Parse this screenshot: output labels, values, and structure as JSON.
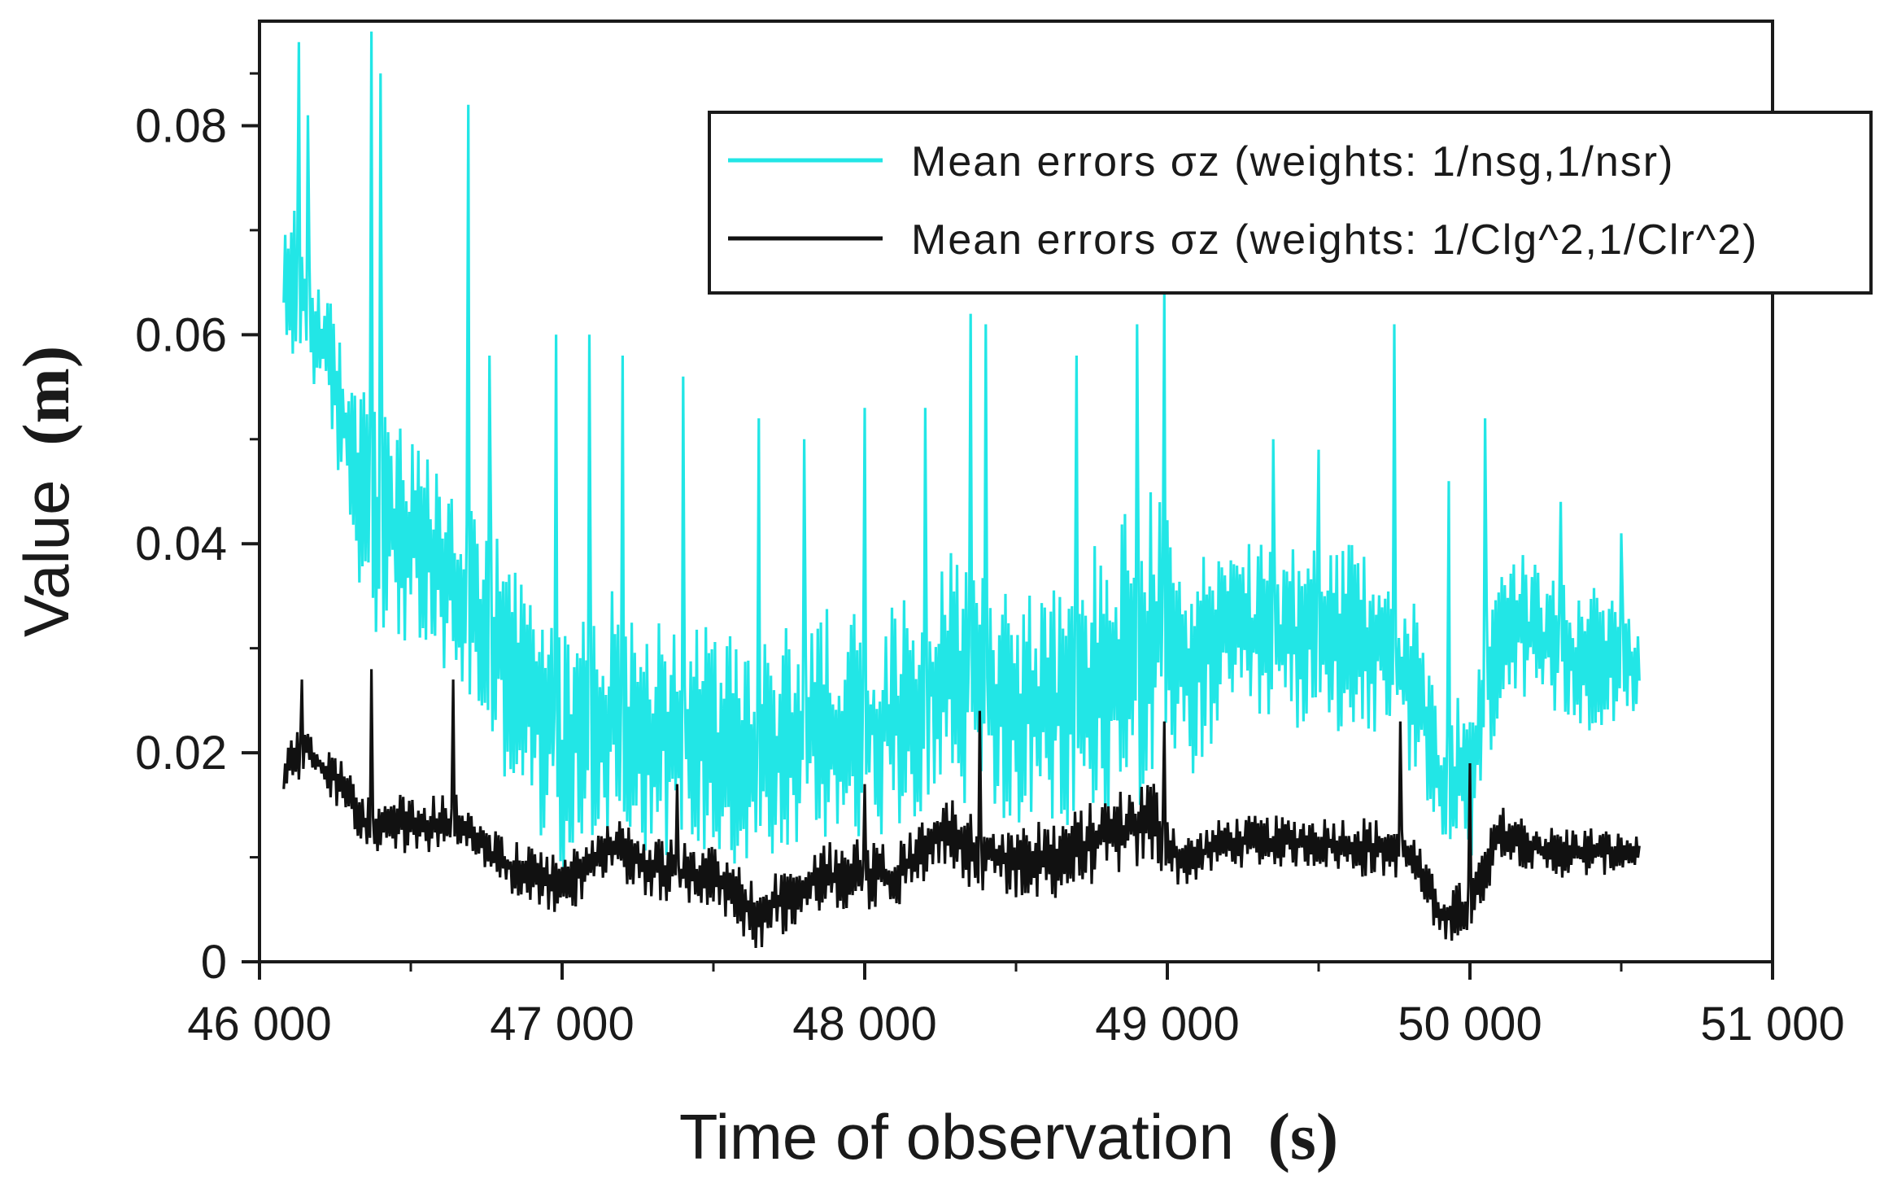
{
  "colors": {
    "series1": "#22e6e6",
    "series2": "#111111",
    "axis": "#1a1a1a",
    "background": "#ffffff"
  },
  "chart_data": {
    "type": "line",
    "title": "",
    "xlabel": "Time of observation",
    "xlabel_unit": "(s)",
    "ylabel": "Value",
    "ylabel_unit": "(m)",
    "xlim": [
      46000,
      51000
    ],
    "ylim": [
      0,
      0.09
    ],
    "x_ticks": [
      46000,
      47000,
      48000,
      49000,
      50000,
      51000
    ],
    "x_tick_labels": [
      "46 000",
      "47 000",
      "48 000",
      "49 000",
      "50 000",
      "51 000"
    ],
    "y_ticks": [
      0,
      0.02,
      0.04,
      0.06,
      0.08
    ],
    "y_tick_labels": [
      "0",
      "0.02",
      "0.04",
      "0.06",
      "0.08"
    ],
    "legend_position": "top-right",
    "series": [
      {
        "name": "Mean errors σz (weights: 1/nsg,1/nsr)",
        "x_start": 46080,
        "x_end": 50560,
        "envelope_x": [
          46080,
          46150,
          46250,
          46350,
          46500,
          46650,
          46800,
          47000,
          47150,
          47300,
          47500,
          47650,
          47800,
          47950,
          48100,
          48250,
          48350,
          48500,
          48650,
          48800,
          48950,
          49050,
          49200,
          49350,
          49500,
          49650,
          49800,
          49900,
          50000,
          50100,
          50250,
          50400,
          50560
        ],
        "envelope_low": [
          0.055,
          0.058,
          0.048,
          0.032,
          0.03,
          0.026,
          0.018,
          0.008,
          0.012,
          0.01,
          0.01,
          0.008,
          0.01,
          0.012,
          0.012,
          0.016,
          0.014,
          0.012,
          0.012,
          0.012,
          0.016,
          0.016,
          0.022,
          0.022,
          0.022,
          0.022,
          0.018,
          0.01,
          0.008,
          0.024,
          0.022,
          0.022,
          0.024
        ],
        "envelope_high": [
          0.074,
          0.07,
          0.062,
          0.055,
          0.05,
          0.046,
          0.04,
          0.032,
          0.036,
          0.034,
          0.032,
          0.03,
          0.034,
          0.034,
          0.034,
          0.04,
          0.04,
          0.036,
          0.036,
          0.042,
          0.046,
          0.04,
          0.04,
          0.04,
          0.04,
          0.04,
          0.036,
          0.026,
          0.026,
          0.042,
          0.038,
          0.036,
          0.034
        ],
        "spikes": [
          [
            46130,
            0.088
          ],
          [
            46160,
            0.081
          ],
          [
            46370,
            0.089
          ],
          [
            46400,
            0.085
          ],
          [
            46690,
            0.082
          ],
          [
            46760,
            0.058
          ],
          [
            46980,
            0.06
          ],
          [
            47090,
            0.06
          ],
          [
            47200,
            0.058
          ],
          [
            47400,
            0.056
          ],
          [
            47650,
            0.052
          ],
          [
            47800,
            0.05
          ],
          [
            48000,
            0.053
          ],
          [
            48200,
            0.053
          ],
          [
            48350,
            0.062
          ],
          [
            48400,
            0.061
          ],
          [
            48700,
            0.058
          ],
          [
            48900,
            0.061
          ],
          [
            48990,
            0.064
          ],
          [
            49350,
            0.05
          ],
          [
            49500,
            0.049
          ],
          [
            49750,
            0.061
          ],
          [
            49930,
            0.046
          ],
          [
            50050,
            0.052
          ],
          [
            50300,
            0.044
          ],
          [
            50500,
            0.041
          ]
        ]
      },
      {
        "name": "Mean errors σz (weights: 1/Clg^2,1/Clr^2)",
        "x_start": 46080,
        "x_end": 50560,
        "envelope_x": [
          46080,
          46150,
          46250,
          46350,
          46500,
          46650,
          46800,
          47000,
          47150,
          47300,
          47500,
          47650,
          47800,
          47950,
          48100,
          48250,
          48350,
          48500,
          48650,
          48800,
          48950,
          49050,
          49200,
          49350,
          49500,
          49650,
          49800,
          49900,
          50000,
          50100,
          50250,
          50400,
          50560
        ],
        "envelope_low": [
          0.016,
          0.018,
          0.015,
          0.01,
          0.01,
          0.011,
          0.007,
          0.004,
          0.008,
          0.006,
          0.005,
          0.001,
          0.004,
          0.005,
          0.005,
          0.009,
          0.007,
          0.006,
          0.006,
          0.008,
          0.009,
          0.007,
          0.009,
          0.009,
          0.009,
          0.008,
          0.008,
          0.002,
          0.002,
          0.01,
          0.008,
          0.008,
          0.009
        ],
        "envelope_high": [
          0.021,
          0.023,
          0.02,
          0.016,
          0.016,
          0.016,
          0.012,
          0.01,
          0.014,
          0.012,
          0.011,
          0.008,
          0.011,
          0.012,
          0.011,
          0.016,
          0.015,
          0.013,
          0.014,
          0.016,
          0.018,
          0.012,
          0.014,
          0.014,
          0.014,
          0.014,
          0.013,
          0.007,
          0.008,
          0.015,
          0.013,
          0.013,
          0.012
        ],
        "spikes": [
          [
            46140,
            0.027
          ],
          [
            46370,
            0.028
          ],
          [
            46640,
            0.027
          ],
          [
            47380,
            0.017
          ],
          [
            48000,
            0.017
          ],
          [
            48380,
            0.024
          ],
          [
            48990,
            0.023
          ],
          [
            49770,
            0.023
          ],
          [
            50000,
            0.019
          ]
        ]
      }
    ]
  }
}
